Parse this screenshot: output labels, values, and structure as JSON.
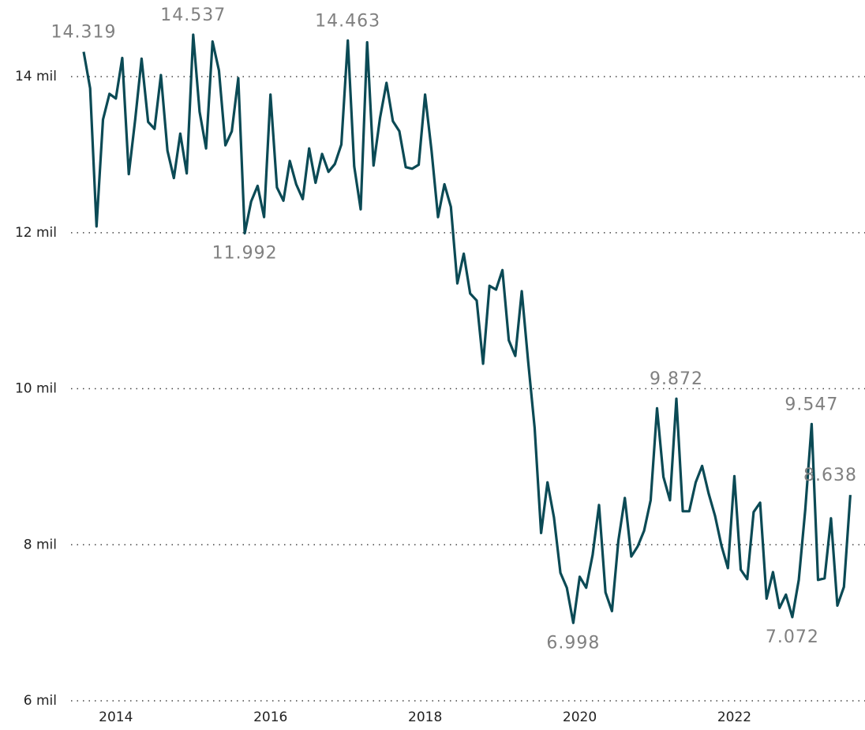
{
  "chart_data": {
    "type": "line",
    "x": [
      2013.583,
      2013.667,
      2013.75,
      2013.833,
      2013.917,
      2014,
      2014.083,
      2014.167,
      2014.25,
      2014.333,
      2014.417,
      2014.5,
      2014.583,
      2014.667,
      2014.75,
      2014.833,
      2014.917,
      2015,
      2015.083,
      2015.167,
      2015.25,
      2015.333,
      2015.417,
      2015.5,
      2015.583,
      2015.667,
      2015.75,
      2015.833,
      2015.917,
      2016,
      2016.083,
      2016.167,
      2016.25,
      2016.333,
      2016.417,
      2016.5,
      2016.583,
      2016.667,
      2016.75,
      2016.833,
      2016.917,
      2017,
      2017.083,
      2017.167,
      2017.25,
      2017.333,
      2017.417,
      2017.5,
      2017.583,
      2017.667,
      2017.75,
      2017.833,
      2017.917,
      2018,
      2018.083,
      2018.167,
      2018.25,
      2018.333,
      2018.417,
      2018.5,
      2018.583,
      2018.667,
      2018.75,
      2018.833,
      2018.917,
      2019,
      2019.083,
      2019.167,
      2019.25,
      2019.333,
      2019.417,
      2019.5,
      2019.583,
      2019.667,
      2019.75,
      2019.833,
      2019.917,
      2020,
      2020.083,
      2020.167,
      2020.25,
      2020.333,
      2020.417,
      2020.5,
      2020.583,
      2020.667,
      2020.75,
      2020.833,
      2020.917,
      2021,
      2021.083,
      2021.167,
      2021.25,
      2021.333,
      2021.417,
      2021.5,
      2021.583,
      2021.667,
      2021.75,
      2021.833,
      2021.917,
      2022,
      2022.083,
      2022.167,
      2022.25,
      2022.333,
      2022.417,
      2022.5,
      2022.583,
      2022.667,
      2022.75,
      2022.833,
      2022.917,
      2023,
      2023.083,
      2023.167,
      2023.25,
      2023.333,
      2023.417,
      2023.5
    ],
    "values": [
      14319,
      13850,
      12080,
      13450,
      13780,
      13720,
      14240,
      12750,
      13450,
      14230,
      13420,
      13330,
      14020,
      13050,
      12700,
      13270,
      12760,
      14537,
      13550,
      13080,
      14450,
      14080,
      13120,
      13300,
      13980,
      11992,
      12400,
      12600,
      12200,
      13770,
      12580,
      12410,
      12920,
      12620,
      12430,
      13080,
      12640,
      13010,
      12780,
      12880,
      13130,
      14463,
      12850,
      12300,
      14440,
      12860,
      13470,
      13920,
      13430,
      13300,
      12840,
      12820,
      12870,
      13770,
      13050,
      12200,
      12620,
      12330,
      11350,
      11730,
      11220,
      11130,
      10320,
      11320,
      11270,
      11520,
      10620,
      10420,
      11250,
      10350,
      9500,
      8150,
      8800,
      8350,
      7640,
      7450,
      6998,
      7590,
      7450,
      7870,
      8510,
      7390,
      7150,
      8050,
      8600,
      7850,
      7980,
      8180,
      8570,
      9750,
      8870,
      8570,
      9872,
      8430,
      8430,
      8800,
      9010,
      8660,
      8370,
      7990,
      7700,
      8880,
      7680,
      7560,
      8420,
      8540,
      7310,
      7650,
      7190,
      7360,
      7072,
      7550,
      8450,
      9547,
      7550,
      7570,
      8340,
      7220,
      7460,
      8638
    ],
    "value_labels": [
      "14.319",
      null,
      null,
      null,
      null,
      null,
      null,
      null,
      null,
      null,
      null,
      null,
      null,
      null,
      null,
      null,
      null,
      "14.537",
      null,
      null,
      null,
      null,
      null,
      null,
      null,
      "11.992",
      null,
      null,
      null,
      null,
      null,
      null,
      null,
      null,
      null,
      null,
      null,
      null,
      null,
      null,
      null,
      "14.463",
      null,
      null,
      null,
      null,
      null,
      null,
      null,
      null,
      null,
      null,
      null,
      null,
      null,
      null,
      null,
      null,
      null,
      null,
      null,
      null,
      null,
      null,
      null,
      null,
      null,
      null,
      null,
      null,
      null,
      null,
      null,
      null,
      null,
      null,
      "6.998",
      null,
      null,
      null,
      null,
      null,
      null,
      null,
      null,
      null,
      null,
      null,
      null,
      null,
      null,
      null,
      "9.872",
      null,
      null,
      null,
      null,
      null,
      null,
      null,
      null,
      null,
      null,
      null,
      null,
      null,
      null,
      null,
      null,
      null,
      "7.072",
      null,
      null,
      "9.547",
      null,
      null,
      null,
      null,
      null,
      "8.638"
    ],
    "color": "#0b4a55",
    "xlim": [
      2013.42,
      2023.69
    ],
    "xticks": [
      2014,
      2016,
      2018,
      2020,
      2022
    ],
    "ylim": [
      6000,
      14780
    ],
    "yticks": [
      {
        "value": 6000,
        "label": "6 mil"
      },
      {
        "value": 8000,
        "label": "8 mil"
      },
      {
        "value": 10000,
        "label": "10 mil"
      },
      {
        "value": 12000,
        "label": "12 mil"
      },
      {
        "value": 14000,
        "label": "14 mil"
      }
    ],
    "grid": true
  }
}
